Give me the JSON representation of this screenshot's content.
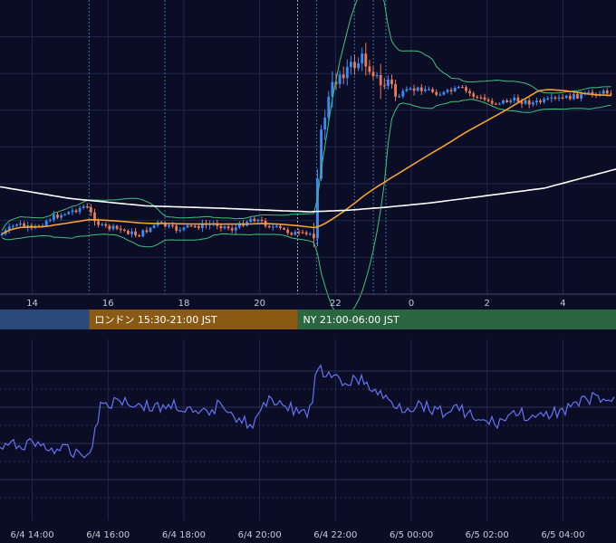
{
  "chart_data": [
    {
      "type": "candlestick",
      "indicators": [
        "bollinger-bands",
        "moving-average-short",
        "moving-average-long"
      ],
      "x_ticks": [
        "14",
        "16",
        "18",
        "20",
        "22",
        "0",
        "2",
        "4"
      ],
      "x_tick_hours": [
        14,
        16,
        18,
        20,
        22,
        24,
        26,
        28
      ],
      "x_range_hours": [
        13.15,
        29.4
      ],
      "grid": true,
      "sessions": [
        {
          "label": "",
          "start_hour": 13.15,
          "end_hour": 15.5,
          "color": "#2a4a7a"
        },
        {
          "label": "ロンドン 15:30-21:00 JST",
          "start_hour": 15.5,
          "end_hour": 21.0,
          "color": "#8a5a14"
        },
        {
          "label": "NY 21:00-06:00 JST",
          "start_hour": 21.0,
          "end_hour": 29.4,
          "color": "#2a6640"
        }
      ],
      "event_lines_hours": [
        15.5,
        17.5,
        21.0,
        21.5,
        22.5,
        23.0,
        23.33
      ],
      "colors": {
        "up": "#3a8df5",
        "down": "#f07a55",
        "bollinger": "#3ec27a",
        "ma_short": "#f7a230",
        "ma_long": "#ffffff"
      },
      "price_path": [
        [
          13.15,
          0.8
        ],
        [
          13.6,
          0.76
        ],
        [
          14.0,
          0.78
        ],
        [
          14.5,
          0.74
        ],
        [
          15.0,
          0.72
        ],
        [
          15.4,
          0.7
        ],
        [
          15.8,
          0.77
        ],
        [
          16.3,
          0.78
        ],
        [
          16.8,
          0.8
        ],
        [
          17.3,
          0.76
        ],
        [
          17.8,
          0.78
        ],
        [
          18.3,
          0.77
        ],
        [
          18.8,
          0.76
        ],
        [
          19.3,
          0.78
        ],
        [
          19.8,
          0.74
        ],
        [
          20.3,
          0.77
        ],
        [
          20.8,
          0.79
        ],
        [
          21.2,
          0.8
        ],
        [
          21.45,
          0.79
        ],
        [
          21.55,
          0.52
        ],
        [
          21.7,
          0.4
        ],
        [
          21.9,
          0.3
        ],
        [
          22.1,
          0.25
        ],
        [
          22.4,
          0.23
        ],
        [
          22.7,
          0.2
        ],
        [
          23.0,
          0.24
        ],
        [
          23.2,
          0.3
        ],
        [
          23.4,
          0.27
        ],
        [
          23.6,
          0.33
        ],
        [
          23.9,
          0.31
        ],
        [
          24.3,
          0.3
        ],
        [
          24.8,
          0.32
        ],
        [
          25.3,
          0.3
        ],
        [
          25.7,
          0.33
        ],
        [
          26.2,
          0.35
        ],
        [
          26.7,
          0.34
        ],
        [
          27.2,
          0.35
        ],
        [
          27.7,
          0.34
        ],
        [
          28.2,
          0.33
        ],
        [
          28.7,
          0.32
        ],
        [
          29.4,
          0.31
        ]
      ],
      "ma_long_path": [
        [
          13.15,
          0.635
        ],
        [
          15.0,
          0.675
        ],
        [
          17.0,
          0.7
        ],
        [
          19.0,
          0.708
        ],
        [
          20.5,
          0.716
        ],
        [
          21.3,
          0.72
        ],
        [
          22.3,
          0.715
        ],
        [
          23.3,
          0.705
        ],
        [
          24.5,
          0.69
        ],
        [
          26.0,
          0.665
        ],
        [
          27.5,
          0.64
        ],
        [
          29.4,
          0.575
        ]
      ]
    },
    {
      "type": "line",
      "series": [
        {
          "color": "#6473f2"
        }
      ],
      "x_ticks": [
        "6/4 14:00",
        "6/4 16:00",
        "6/4 18:00",
        "6/4 20:00",
        "6/4 22:00",
        "6/5 00:00",
        "6/5 02:00",
        "6/5 04:00"
      ],
      "x_tick_hours": [
        14,
        16,
        18,
        20,
        22,
        24,
        26,
        28
      ],
      "x_range_hours": [
        13.15,
        29.4
      ],
      "grid": true,
      "y_path": [
        [
          13.15,
          0.6
        ],
        [
          14.0,
          0.57
        ],
        [
          14.6,
          0.61
        ],
        [
          15.2,
          0.62
        ],
        [
          15.5,
          0.64
        ],
        [
          15.8,
          0.37
        ],
        [
          16.3,
          0.33
        ],
        [
          16.8,
          0.36
        ],
        [
          17.3,
          0.38
        ],
        [
          17.8,
          0.36
        ],
        [
          18.3,
          0.42
        ],
        [
          18.7,
          0.41
        ],
        [
          19.0,
          0.34
        ],
        [
          19.4,
          0.43
        ],
        [
          19.8,
          0.48
        ],
        [
          20.3,
          0.32
        ],
        [
          20.8,
          0.38
        ],
        [
          21.2,
          0.41
        ],
        [
          21.4,
          0.38
        ],
        [
          21.5,
          0.14
        ],
        [
          21.8,
          0.21
        ],
        [
          22.2,
          0.24
        ],
        [
          22.6,
          0.22
        ],
        [
          23.0,
          0.28
        ],
        [
          23.4,
          0.34
        ],
        [
          23.8,
          0.38
        ],
        [
          24.3,
          0.36
        ],
        [
          24.8,
          0.4
        ],
        [
          25.3,
          0.38
        ],
        [
          25.8,
          0.46
        ],
        [
          26.3,
          0.46
        ],
        [
          26.8,
          0.4
        ],
        [
          27.3,
          0.45
        ],
        [
          27.8,
          0.4
        ],
        [
          28.3,
          0.37
        ],
        [
          28.8,
          0.32
        ],
        [
          29.4,
          0.35
        ]
      ]
    }
  ]
}
